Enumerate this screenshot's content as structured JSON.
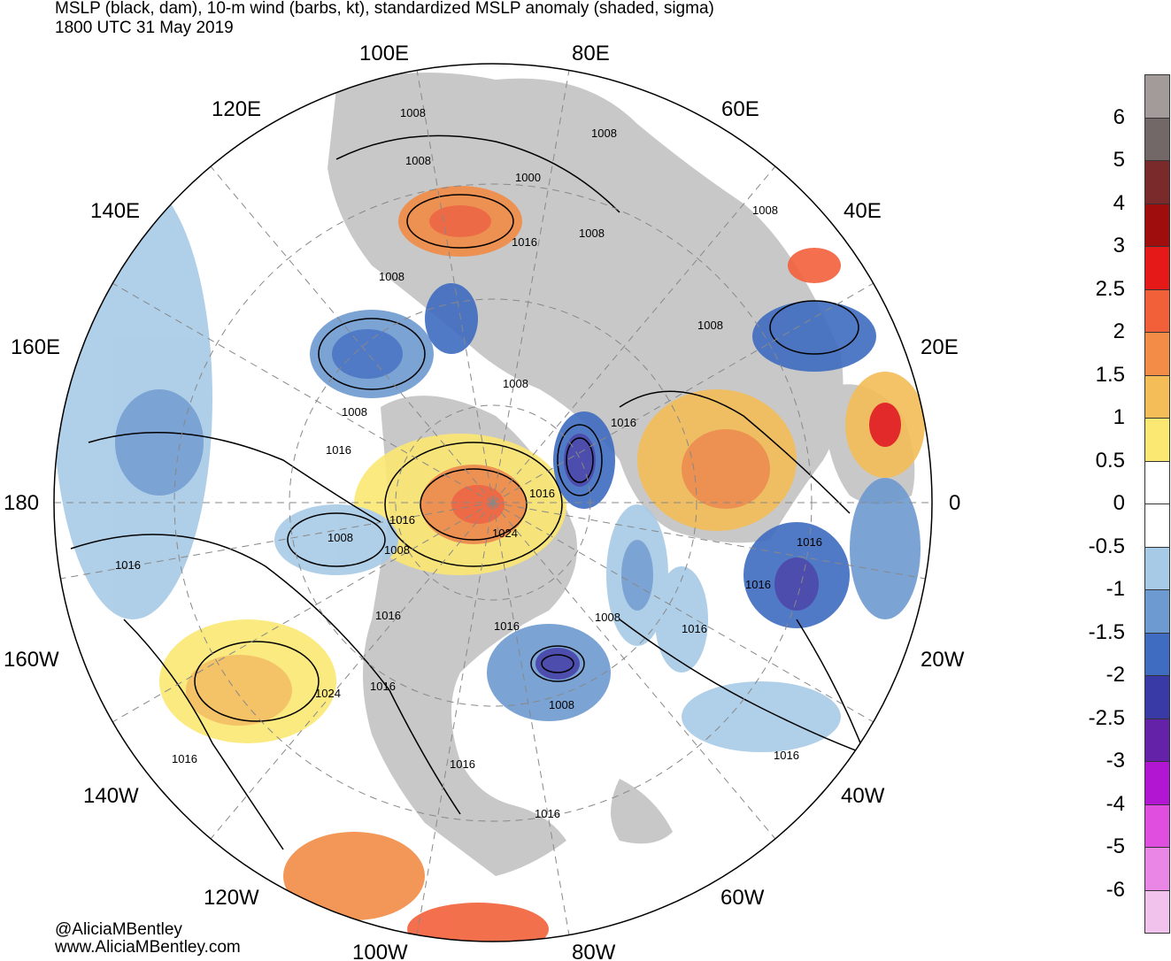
{
  "title_line1": "MSLP (black, dam), 10-m wind (barbs, kt), standardized MSLP anomaly (shaded, sigma)",
  "title_line2": "1800 UTC 31 May 2019",
  "credit_line1": "@AliciaMBentley",
  "credit_line2": "www.AliciaMBentley.com",
  "longitude_labels": {
    "lon_100e": "100E",
    "lon_80e": "80E",
    "lon_120e": "120E",
    "lon_60e": "60E",
    "lon_140e": "140E",
    "lon_40e": "40E",
    "lon_160e": "160E",
    "lon_20e": "20E",
    "lon_180": "180",
    "lon_0": "0",
    "lon_160w": "160W",
    "lon_20w": "20W",
    "lon_140w": "140W",
    "lon_40w": "40W",
    "lon_120w": "120W",
    "lon_60w": "60W",
    "lon_100w": "100W",
    "lon_80w": "80W"
  },
  "isobar_labels": [
    "1008",
    "1008",
    "1008",
    "1000",
    "1016",
    "1008",
    "1008",
    "1008",
    "1008",
    "1008",
    "1008",
    "1016",
    "1016",
    "1016",
    "1016",
    "1024",
    "1016",
    "1008",
    "1008",
    "1016",
    "1016",
    "1016",
    "1024",
    "1016",
    "1008",
    "1016",
    "1016",
    "1016",
    "1016",
    "1016",
    "1008",
    "1016"
  ],
  "colorbar": {
    "labels": [
      "6",
      "5",
      "4",
      "3",
      "2.5",
      "2",
      "1.5",
      "1",
      "0.5",
      "0",
      "-0.5",
      "-1",
      "-1.5",
      "-2",
      "-2.5",
      "-3",
      "-4",
      "-5",
      "-6"
    ],
    "colors": [
      "#a39a9a",
      "#736868",
      "#7a2a2a",
      "#a00d0d",
      "#e61919",
      "#f2603a",
      "#f28c46",
      "#f4bd57",
      "#fbe873",
      "#ffffff",
      "#ffffff",
      "#a7cae6",
      "#6d9ad0",
      "#3f6cc0",
      "#3a3aa6",
      "#6422a8",
      "#b316d2",
      "#e04ee0",
      "#ea86e6",
      "#f0c2ec"
    ]
  },
  "colors": {
    "land_gray": "#c8c8c8",
    "ocean": "#ffffff",
    "positive_anomaly": "#f4bd57",
    "negative_anomaly": "#6d9ad0"
  }
}
